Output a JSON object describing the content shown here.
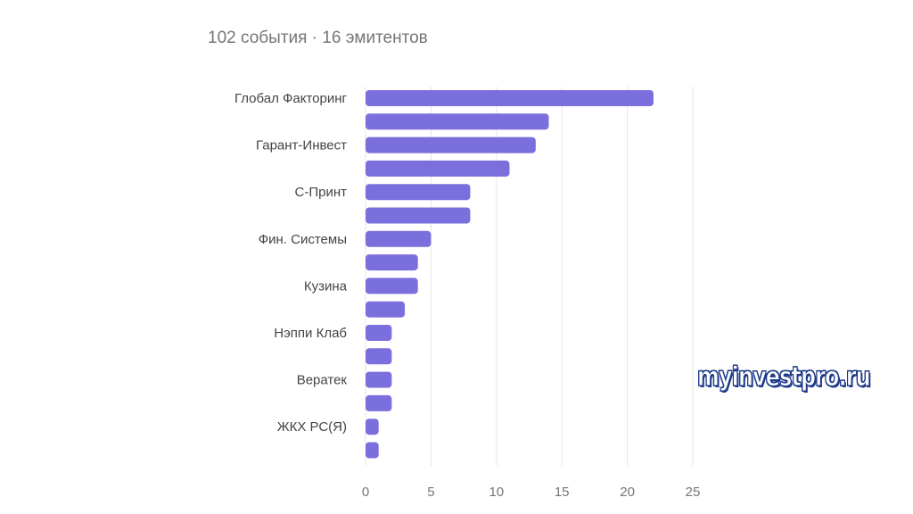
{
  "chart_data": {
    "type": "bar",
    "orientation": "horizontal",
    "title": "102 события · 16 эмитентов",
    "categories": [
      "Глобал Факторинг",
      "",
      "Гарант-Инвест",
      "",
      "С-Принт",
      "",
      "Фин. Системы",
      "",
      "Кузина",
      "",
      "Нэппи Клаб",
      "",
      "Вератек",
      "",
      "ЖКХ РС(Я)",
      ""
    ],
    "values": [
      22,
      14,
      13,
      11,
      8,
      8,
      5,
      4,
      4,
      3,
      2,
      2,
      2,
      2,
      1,
      1
    ],
    "xlim": [
      0,
      25
    ],
    "xticks": [
      0,
      5,
      10,
      15,
      20,
      25
    ],
    "grid": true,
    "bar_color": "#7b6fde"
  },
  "watermark": "myinvestpro.ru"
}
